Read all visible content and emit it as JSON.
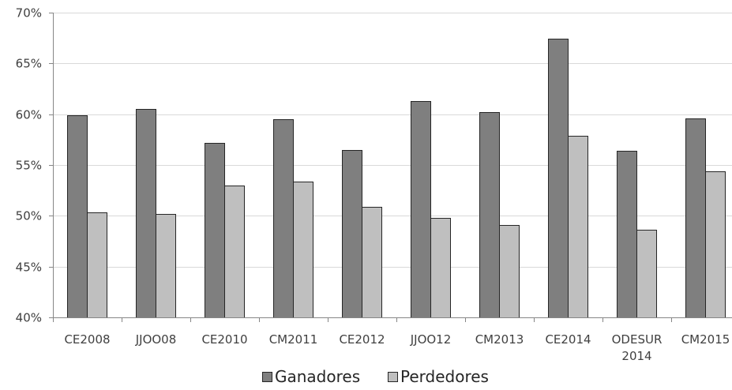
{
  "chart_data": {
    "type": "bar",
    "categories": [
      [
        "CE2008"
      ],
      [
        "JJOO08"
      ],
      [
        "CE2010"
      ],
      [
        "CM2011"
      ],
      [
        "CE2012"
      ],
      [
        "JJOO12"
      ],
      [
        "CM2013"
      ],
      [
        "CE2014"
      ],
      [
        "ODESUR",
        "2014"
      ],
      [
        "CM2015"
      ]
    ],
    "series": [
      {
        "name": "Ganadores",
        "color": "#7f7f7f",
        "values": [
          59.9,
          60.5,
          57.2,
          59.5,
          56.5,
          61.3,
          60.2,
          67.4,
          56.4,
          59.6
        ]
      },
      {
        "name": "Perdedores",
        "color": "#bfbfbf",
        "values": [
          50.3,
          50.2,
          53.0,
          53.4,
          50.9,
          49.8,
          49.1,
          57.9,
          48.6,
          54.4
        ]
      }
    ],
    "ylim": [
      40,
      70
    ],
    "yticks": [
      40,
      45,
      50,
      55,
      60,
      65,
      70
    ],
    "ytick_labels": [
      "40%",
      "45%",
      "50%",
      "55%",
      "60%",
      "65%",
      "70%"
    ],
    "grid": true,
    "legend_position": "bottom",
    "title": "",
    "xlabel": "",
    "ylabel": ""
  }
}
